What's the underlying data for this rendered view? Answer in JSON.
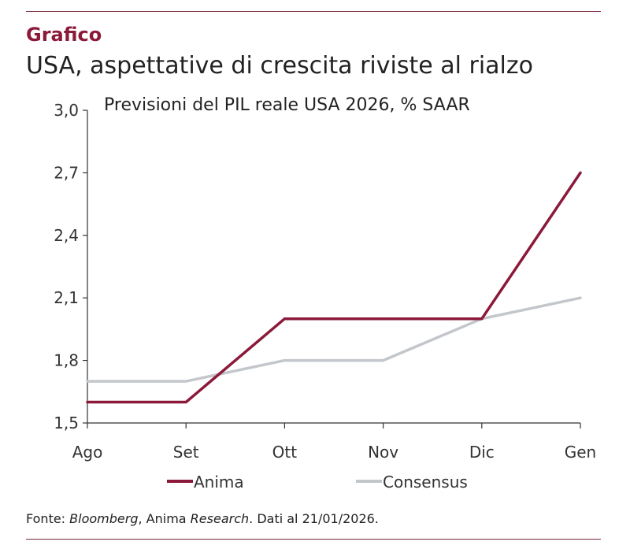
{
  "header": {
    "label": "Grafico",
    "headline": "USA, aspettative di crescita riviste al rialzo"
  },
  "source": {
    "prefix": "Fonte: ",
    "italic1": "Bloomberg",
    "mid": ", Anima ",
    "italic2": "Research",
    "suffix": ". Dati al 21/01/2026."
  },
  "colors": {
    "anima": "#8b1a3a",
    "consensus": "#c3c7cc",
    "axis": "#333333",
    "rule": "#7a2a3a"
  },
  "chart_data": {
    "type": "line",
    "title": "Previsioni del PIL reale USA 2026, % SAAR",
    "xlabel": "",
    "ylabel": "",
    "categories": [
      "Ago",
      "Set",
      "Ott",
      "Nov",
      "Dic",
      "Gen"
    ],
    "ylim": [
      1.5,
      3.0
    ],
    "yticks": [
      1.5,
      1.8,
      2.1,
      2.4,
      2.7,
      3.0
    ],
    "ytick_labels": [
      "1,5",
      "1,8",
      "2,1",
      "2,4",
      "2,7",
      "3,0"
    ],
    "grid": false,
    "legend_position": "bottom",
    "series": [
      {
        "name": "Anima",
        "color": "#8b1a3a",
        "values": [
          1.6,
          1.6,
          2.0,
          2.0,
          2.0,
          2.7
        ]
      },
      {
        "name": "Consensus",
        "color": "#c3c7cc",
        "values": [
          1.7,
          1.7,
          1.8,
          1.8,
          2.0,
          2.1
        ]
      }
    ]
  }
}
